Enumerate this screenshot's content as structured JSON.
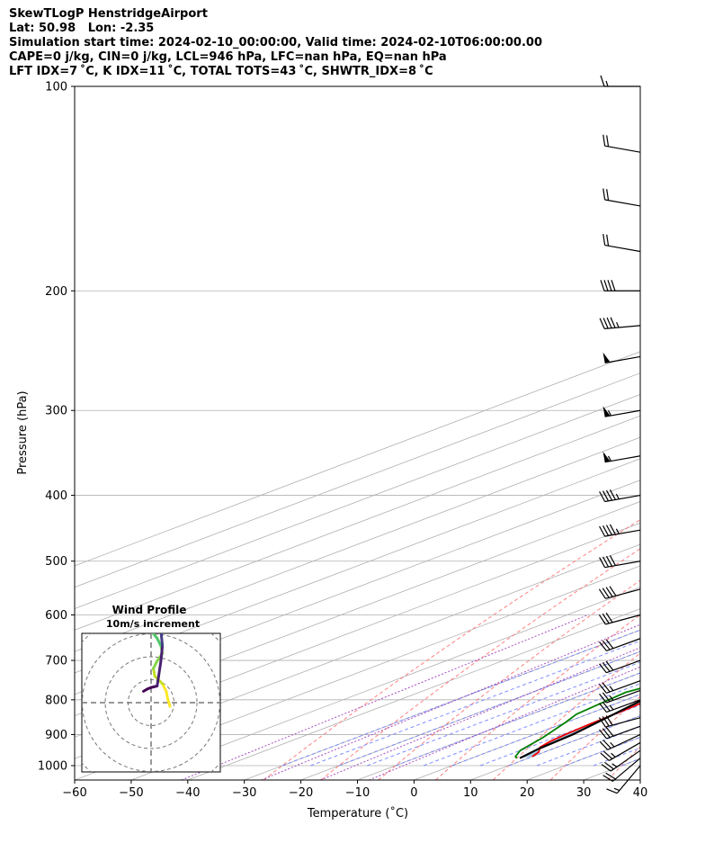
{
  "header": {
    "title": "SkewTLogP HenstridgeAirport",
    "latlon": "Lat: 50.98   Lon: -2.35",
    "times": "Simulation start time: 2024-02-10_00:00:00, Valid time: 2024-02-10T06:00:00.00",
    "params": "CAPE=0 j/kg, CIN=0 j/kg, LCL=946 hPa, LFC=nan hPa, EQ=nan hPa",
    "indices": "LFT IDX=7 ˚C, K IDX=11 ˚C, TOTAL TOTS=43 ˚C, SHWTR_IDX=8 ˚C"
  },
  "chart_data": {
    "type": "line",
    "skew": "skew-T log-p",
    "xlabel": "Temperature (˚C)",
    "ylabel": "Pressure (hPa)",
    "xlim": [
      -60,
      40
    ],
    "plim": [
      1050,
      100
    ],
    "xticks": [
      "−60",
      "−50",
      "−40",
      "−30",
      "−20",
      "−10",
      "0",
      "10",
      "20",
      "30",
      "40"
    ],
    "xtick_values": [
      -60,
      -50,
      -40,
      -30,
      -20,
      -10,
      0,
      10,
      20,
      30,
      40
    ],
    "pticks": [
      "100",
      "200",
      "300",
      "400",
      "500",
      "600",
      "700",
      "800",
      "900",
      "1000"
    ],
    "ptick_values": [
      100,
      200,
      300,
      400,
      500,
      600,
      700,
      800,
      900,
      1000
    ],
    "grid": true,
    "colors": {
      "temperature": "#ee0000",
      "dewpoint": "#008000",
      "parcel": "#000000",
      "cape_fill": "#a3c7e0",
      "isotherm": "#b0b0b0",
      "dry_adiabat": "#ff6b6b",
      "moist_adiabat": "#6b7bff",
      "mixing_ratio": "#a64dc0"
    },
    "series": [
      {
        "key": "temperature",
        "points": [
          [
            10.0,
            970
          ],
          [
            9.0,
            955
          ],
          [
            7.0,
            940
          ],
          [
            6.0,
            920
          ],
          [
            5.5,
            900
          ],
          [
            5.0,
            870
          ],
          [
            4.5,
            820
          ],
          [
            3.6,
            780
          ],
          [
            3.0,
            740
          ],
          [
            2.3,
            700
          ],
          [
            1.5,
            650
          ],
          [
            0.5,
            600
          ],
          [
            -1.0,
            560
          ],
          [
            -2.3,
            520
          ],
          [
            -3.5,
            480
          ],
          [
            -4.5,
            440
          ],
          [
            -5.5,
            410
          ],
          [
            -8.0,
            380
          ],
          [
            -11.0,
            350
          ],
          [
            -14.0,
            330
          ],
          [
            -17.0,
            310
          ],
          [
            -18.5,
            290
          ],
          [
            -21.0,
            260
          ],
          [
            -23.5,
            240
          ],
          [
            -25.5,
            220
          ],
          [
            -28.0,
            205
          ],
          [
            -30.5,
            190
          ],
          [
            -32.5,
            178
          ],
          [
            -35.0,
            160
          ],
          [
            -37.0,
            150
          ],
          [
            -39.0,
            140
          ],
          [
            -40.5,
            130
          ],
          [
            -42.0,
            120
          ],
          [
            -42.3,
            115
          ],
          [
            -44.0,
            108
          ],
          [
            -45.0,
            100
          ]
        ]
      },
      {
        "key": "dewpoint",
        "points": [
          [
            8.0,
            975
          ],
          [
            7.0,
            970
          ],
          [
            5.0,
            950
          ],
          [
            3.0,
            910
          ],
          [
            0.0,
            865
          ],
          [
            -2.0,
            840
          ],
          [
            -3.0,
            800
          ],
          [
            -3.5,
            780
          ],
          [
            -2.0,
            760
          ],
          [
            -4.0,
            720
          ],
          [
            -12.0,
            690
          ],
          [
            -30.0,
            615
          ],
          [
            -29.0,
            600
          ],
          [
            -28.5,
            580
          ],
          [
            -27.5,
            560
          ],
          [
            -27.0,
            540
          ],
          [
            -23.0,
            500
          ],
          [
            -20.0,
            470
          ],
          [
            -18.0,
            440
          ],
          [
            -17.0,
            420
          ],
          [
            -17.0,
            400
          ],
          [
            -17.0,
            380
          ],
          [
            -17.5,
            360
          ],
          [
            -18.5,
            340
          ],
          [
            -19.5,
            320
          ],
          [
            -23.0,
            290
          ],
          [
            -27.0,
            270
          ],
          [
            -27.0,
            250
          ],
          [
            -30.0,
            230
          ],
          [
            -33.0,
            210
          ],
          [
            -35.0,
            195
          ],
          [
            -37.0,
            180
          ],
          [
            -40.0,
            170
          ],
          [
            -43.0,
            155
          ],
          [
            -47.0,
            140
          ],
          [
            -52.0,
            125
          ],
          [
            -55.0,
            112
          ],
          [
            -58.0,
            100
          ]
        ]
      },
      {
        "key": "parcel",
        "points": [
          [
            8.5,
            975
          ],
          [
            7.5,
            946
          ],
          [
            6.8,
            900
          ],
          [
            5.0,
            850
          ],
          [
            3.0,
            800
          ],
          [
            0.5,
            750
          ],
          [
            -2.5,
            700
          ],
          [
            -6.0,
            650
          ],
          [
            -10.0,
            600
          ],
          [
            -14.5,
            550
          ],
          [
            -19.5,
            500
          ],
          [
            -25.0,
            450
          ],
          [
            -31.0,
            400
          ],
          [
            -38.0,
            350
          ],
          [
            -46.0,
            300
          ],
          [
            -55.0,
            250
          ],
          [
            -66.0,
            200
          ],
          [
            -73.0,
            170
          ],
          [
            -80.0,
            145
          ],
          [
            -87.0,
            120
          ],
          [
            -92.0,
            100
          ]
        ]
      }
    ],
    "wind_barbs": {
      "pressures": [
        1000,
        975,
        950,
        925,
        900,
        875,
        850,
        800,
        775,
        750,
        700,
        650,
        600,
        550,
        500,
        450,
        400,
        350,
        300,
        250,
        225,
        200,
        175,
        150,
        125,
        100
      ],
      "speed_kt": [
        15,
        20,
        25,
        25,
        25,
        30,
        30,
        25,
        25,
        25,
        30,
        30,
        30,
        40,
        40,
        45,
        45,
        55,
        55,
        50,
        45,
        40,
        20,
        20,
        20,
        15
      ],
      "dir_deg": [
        220,
        230,
        235,
        240,
        245,
        250,
        255,
        250,
        250,
        250,
        250,
        250,
        255,
        255,
        260,
        260,
        260,
        260,
        260,
        260,
        265,
        270,
        280,
        280,
        280,
        270
      ]
    },
    "wind_profile": {
      "title": "Wind Profile",
      "subtitle": "10m/s increment",
      "points": [
        [
          2.5,
          -0.5
        ],
        [
          2.2,
          0.5
        ],
        [
          2.0,
          1.5
        ],
        [
          1.5,
          2.5
        ],
        [
          0.5,
          3.5
        ],
        [
          0.3,
          4.5
        ],
        [
          0.8,
          5.5
        ],
        [
          1.5,
          6.5
        ],
        [
          1.3,
          7.5
        ],
        [
          0.8,
          8.5
        ],
        [
          0.0,
          9.5
        ],
        [
          -0.5,
          10.5
        ],
        [
          -0.8,
          11.5
        ],
        [
          -0.5,
          12.5
        ],
        [
          -0.2,
          13.5
        ],
        [
          -0.5,
          14.5
        ],
        [
          -1.0,
          15.5
        ],
        [
          -1.8,
          16.8
        ],
        [
          -2.2,
          18.0
        ],
        [
          -2.0,
          19.5
        ],
        [
          -1.2,
          20.5
        ],
        [
          0.5,
          22.0
        ],
        [
          1.5,
          23.5
        ],
        [
          2.0,
          25.0
        ],
        [
          2.5,
          26.5
        ],
        [
          3.0,
          28.0
        ],
        [
          3.5,
          29.5
        ],
        [
          3.8,
          31.0
        ]
      ],
      "surface_points": [
        [
          -1.0,
          1.5
        ],
        [
          -0.5,
          1.8
        ],
        [
          0.0,
          2.0
        ],
        [
          0.8,
          2.2
        ],
        [
          1.0,
          3.5
        ],
        [
          1.3,
          5.5
        ],
        [
          1.5,
          7.5
        ],
        [
          1.3,
          9.5
        ],
        [
          0.5,
          11.5
        ],
        [
          -0.5,
          13.5
        ],
        [
          -1.2,
          15.5
        ],
        [
          -1.5,
          16.5
        ]
      ]
    }
  }
}
